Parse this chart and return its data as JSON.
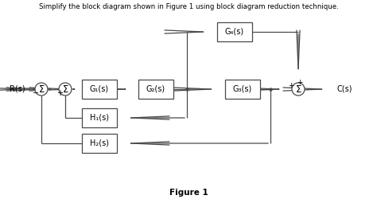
{
  "title": "Simplify the block diagram shown in ​Figure 1​ using block diagram reduction technique.",
  "title_plain": "Simplify the block diagram shown in Figure 1 using block diagram reduction technique.",
  "figure_label": "Figure 1",
  "background_color": "#ffffff",
  "line_color": "#4a4a4a",
  "blocks": {
    "G1": "G₁(s)",
    "G2": "G₂(s)",
    "G3": "G₃(s)",
    "G4": "G₄(s)",
    "H1": "H₁(s)",
    "H2": "H₂(s)"
  },
  "signals": {
    "input": "R(s)",
    "output": "C(s)"
  }
}
